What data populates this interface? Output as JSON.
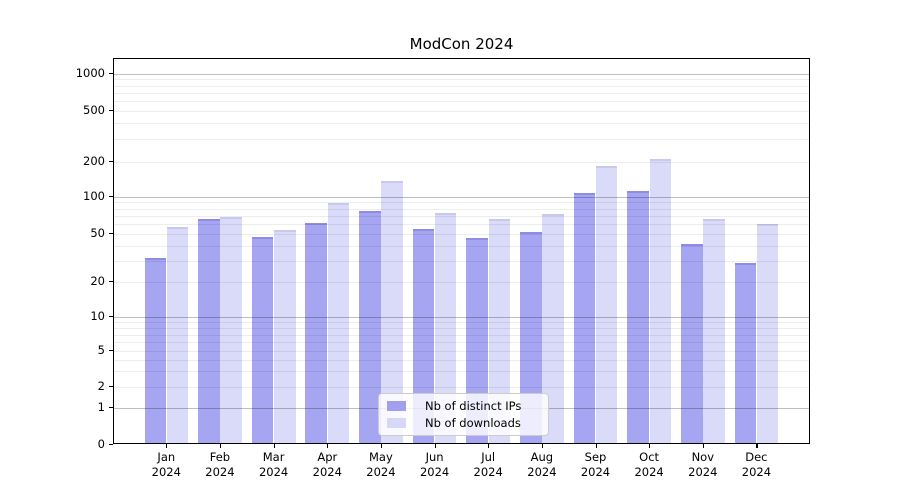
{
  "chart_data": {
    "type": "bar",
    "title": "ModCon 2024",
    "categories": [
      "Jan 2024",
      "Feb 2024",
      "Mar 2024",
      "Apr 2024",
      "May 2024",
      "Jun 2024",
      "Jul 2024",
      "Aug 2024",
      "Sep 2024",
      "Oct 2024",
      "Nov 2024",
      "Dec 2024"
    ],
    "series": [
      {
        "name": "Nb of distinct IPs",
        "color": "#a5a5f2",
        "values": [
          31,
          64,
          46,
          60,
          75,
          54,
          45,
          51,
          105,
          108,
          40,
          28
        ]
      },
      {
        "name": "Nb of downloads",
        "color": "#dadaf9",
        "values": [
          56,
          67,
          53,
          87,
          134,
          72,
          65,
          71,
          180,
          205,
          64,
          59
        ]
      }
    ],
    "xlabel": "",
    "ylabel": "",
    "yscale": "symlog",
    "y_ticks": [
      0,
      1,
      2,
      5,
      10,
      20,
      50,
      100,
      200,
      500,
      1000
    ],
    "ylim": [
      0,
      1300
    ],
    "grid": true,
    "legend_position": "lower center"
  },
  "colors": {
    "series0": "#a5a5f2",
    "series1": "#dadaf9",
    "grid_minor": "#ececec",
    "grid_major": "#bfbfbf",
    "axis": "#000000"
  }
}
